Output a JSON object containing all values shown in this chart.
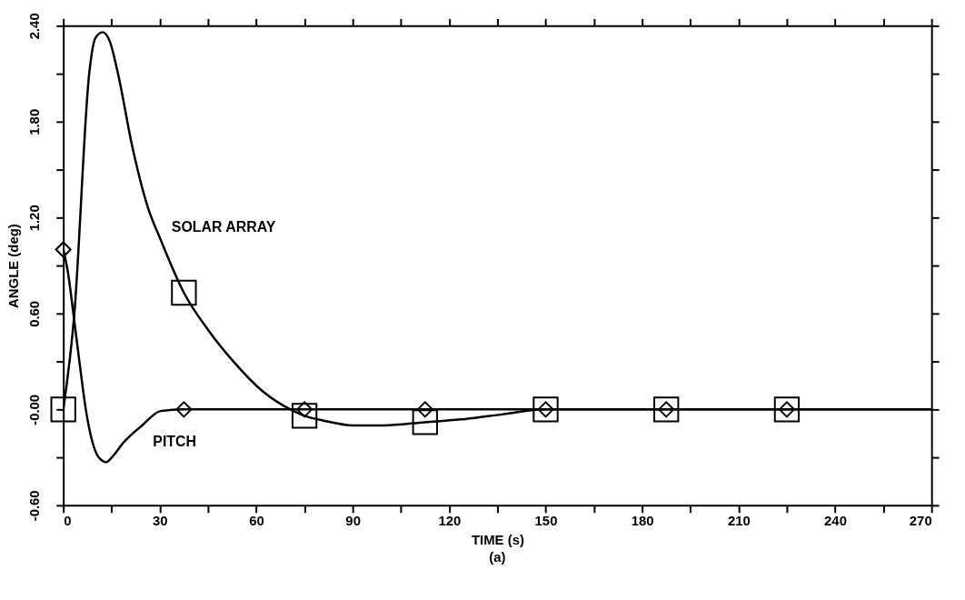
{
  "chart_data": {
    "type": "line",
    "xlabel": "TIME (s)",
    "ylabel": "ANGLE  (deg)",
    "annotations": [
      "(a)"
    ],
    "xlim": [
      0,
      270
    ],
    "ylim": [
      -0.6,
      2.4
    ],
    "xticks": [
      0,
      {
        "value": 15,
        "label": null
      },
      30,
      {
        "value": 45,
        "label": null
      },
      60,
      {
        "value": 75,
        "label": null
      },
      90,
      {
        "value": 105,
        "label": null
      },
      120,
      {
        "value": 135,
        "label": null
      },
      150,
      {
        "value": 165,
        "label": null
      },
      180,
      {
        "value": 195,
        "label": null
      },
      210,
      {
        "value": 225,
        "label": null
      },
      240,
      {
        "value": 255,
        "label": null
      },
      270
    ],
    "yticks": [
      {
        "value": -0.6,
        "label": "-0.60"
      },
      {
        "value": -0.3,
        "label": null
      },
      {
        "value": 0,
        "label": "-0.00"
      },
      {
        "value": 0.3,
        "label": null
      },
      {
        "value": 0.6,
        "label": "0.60"
      },
      {
        "value": 0.9,
        "label": null
      },
      {
        "value": 1.2,
        "label": "1.20"
      },
      {
        "value": 1.5,
        "label": null
      },
      {
        "value": 1.8,
        "label": "1.80"
      },
      {
        "value": 2.1,
        "label": null
      },
      {
        "value": 2.4,
        "label": "2.40"
      }
    ],
    "grid": false,
    "legend": false,
    "line_style": "solid",
    "series": [
      {
        "name": "SOLAR ARRAY",
        "color": "#000000",
        "marker": "none",
        "x": [
          0,
          3.4,
          8.1,
          9.9,
          12.2,
          14.5,
          16.9,
          21.5,
          26.2,
          30.3,
          37.5,
          45.3,
          52.9,
          62.2,
          71.6,
          75,
          80.9,
          90.2,
          99.6,
          112.5,
          125,
          136.8,
          150,
          187.5,
          225,
          270
        ],
        "values": [
          0,
          0.59,
          2.11,
          2.32,
          2.36,
          2.3,
          2.11,
          1.64,
          1.27,
          1.06,
          0.73,
          0.49,
          0.3,
          0.11,
          -0.01,
          -0.04,
          -0.07,
          -0.1,
          -0.1,
          -0.08,
          -0.06,
          -0.03,
          0,
          0,
          0,
          0
        ]
      },
      {
        "name": "PITCH",
        "color": "#000000",
        "marker": "none",
        "x": [
          0,
          1.5,
          3,
          5,
          7,
          9,
          11,
          13.3,
          15.5,
          18.6,
          24.5,
          30.3,
          37.5,
          75,
          112.5,
          150,
          187.5,
          225,
          270
        ],
        "values": [
          1.0,
          0.85,
          0.62,
          0.3,
          0,
          -0.2,
          -0.3,
          -0.33,
          -0.29,
          -0.21,
          -0.1,
          -0.01,
          0,
          0,
          0,
          0,
          0,
          0,
          0
        ]
      },
      {
        "type": "scatter",
        "color": "#000000",
        "marker": "square",
        "x": [
          0,
          37.5,
          75,
          112.5,
          150,
          187.5,
          225
        ],
        "values": [
          0,
          0.73,
          -0.04,
          -0.08,
          0,
          0,
          0
        ]
      },
      {
        "type": "scatter",
        "color": "#000000",
        "marker": "diamond",
        "x": [
          0,
          37.5,
          75,
          112.5,
          150,
          187.5,
          225
        ],
        "values": [
          1.0,
          0,
          0,
          0,
          0,
          0,
          0
        ]
      }
    ]
  }
}
